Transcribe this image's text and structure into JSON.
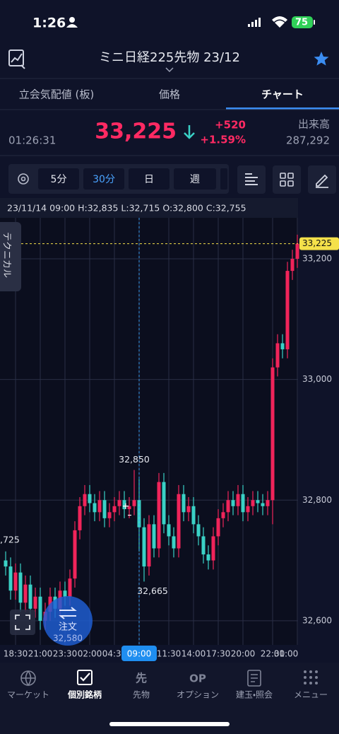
{
  "status_bar": {
    "time": "1:26",
    "battery": "75"
  },
  "header": {
    "title": "ミニ日経225先物 23/12"
  },
  "tabs": [
    "立会気配値 (板)",
    "価格",
    "チャート"
  ],
  "quote": {
    "time": "01:26:31",
    "price": "33,225",
    "change": "+520",
    "change_pct": "+1.59%",
    "volume_label": "出来高",
    "volume": "287,292"
  },
  "toolbar": {
    "intervals": [
      "5分",
      "30分",
      "日",
      "週"
    ]
  },
  "side_tab": "テクニカル",
  "chart_data": {
    "type": "candlestick",
    "info": "23/11/14 09:00 H:32,835 L:32,715 O:32,800 C:32,755",
    "categories": [
      null,
      null,
      "18:30",
      null,
      null,
      null,
      null,
      "21:00",
      null,
      null,
      null,
      null,
      "23:30",
      null,
      null,
      null,
      null,
      "02:00",
      null,
      null,
      null,
      null,
      "04:30",
      null,
      null,
      null,
      null,
      "09:00",
      null,
      null,
      null,
      null,
      null,
      "11:30",
      null,
      null,
      null,
      null,
      "14:00",
      null,
      null,
      null,
      null,
      "17:30",
      null,
      null,
      null,
      null,
      "20:00",
      null,
      null,
      null,
      null,
      null,
      "22:30",
      null,
      null,
      null,
      null,
      "01:00"
    ],
    "open": [
      32700,
      32690,
      32650,
      32680,
      32630,
      32660,
      32620,
      32640,
      32600,
      32615,
      32640,
      32620,
      32650,
      32640,
      32670,
      32750,
      32790,
      32810,
      32795,
      32780,
      32800,
      32770,
      32780,
      32790,
      32800,
      32785,
      32790,
      32800,
      32755,
      32690,
      32760,
      32720,
      32830,
      32760,
      32740,
      32720,
      32810,
      32780,
      32790,
      32760,
      32740,
      32710,
      32700,
      32740,
      32770,
      32780,
      32800,
      32790,
      32810,
      32780,
      32790,
      32800,
      32795,
      32790,
      32800,
      33020,
      33060,
      33050,
      33180,
      33200
    ],
    "high": [
      32715,
      32705,
      32695,
      32695,
      32675,
      32675,
      32655,
      32655,
      32630,
      32655,
      32655,
      32665,
      32665,
      32685,
      32765,
      32805,
      32825,
      32825,
      32810,
      32815,
      32815,
      32795,
      32805,
      32815,
      32815,
      32805,
      32850,
      32835,
      32770,
      32775,
      32775,
      32845,
      32845,
      32775,
      32755,
      32825,
      32825,
      32805,
      32805,
      32775,
      32755,
      32725,
      32755,
      32785,
      32795,
      32815,
      32815,
      32825,
      32825,
      32805,
      32815,
      32815,
      32810,
      32815,
      33035,
      33075,
      33075,
      33195,
      33215,
      33240
    ],
    "low": [
      32675,
      32635,
      32635,
      32615,
      32615,
      32605,
      32605,
      32585,
      32585,
      32600,
      32605,
      32605,
      32625,
      32625,
      32655,
      32735,
      32775,
      32780,
      32765,
      32765,
      32755,
      32755,
      32765,
      32775,
      32770,
      32770,
      32775,
      32715,
      32665,
      32675,
      32705,
      32705,
      32745,
      32725,
      32705,
      32705,
      32765,
      32765,
      32745,
      32725,
      32695,
      32685,
      32685,
      32725,
      32755,
      32765,
      32775,
      32775,
      32765,
      32765,
      32775,
      32780,
      32775,
      32775,
      32760,
      33005,
      33035,
      33035,
      33165,
      33185
    ],
    "close": [
      32690,
      32650,
      32680,
      32630,
      32660,
      32620,
      32640,
      32600,
      32615,
      32640,
      32620,
      32650,
      32640,
      32670,
      32750,
      32790,
      32810,
      32795,
      32780,
      32800,
      32770,
      32780,
      32790,
      32800,
      32785,
      32790,
      32800,
      32755,
      32690,
      32760,
      32720,
      32830,
      32760,
      32740,
      32720,
      32810,
      32780,
      32790,
      32760,
      32740,
      32710,
      32700,
      32740,
      32770,
      32780,
      32800,
      32790,
      32810,
      32780,
      32790,
      32800,
      32795,
      32790,
      32800,
      33020,
      33060,
      33050,
      33180,
      33200,
      33225
    ],
    "up_color": "#f0245a",
    "down_color": "#3ad1c6",
    "ylim": [
      32560,
      33268
    ],
    "yticks": [
      {
        "value": 32600,
        "label": "32,600"
      },
      {
        "value": 32800,
        "label": "32,800"
      },
      {
        "value": 33000,
        "label": "33,000"
      },
      {
        "value": 33200,
        "label": "33,200"
      }
    ],
    "grid": true,
    "current_price": {
      "value": 33225,
      "label": "33,225"
    },
    "annotations": [
      {
        "text": "32,850"
      },
      {
        "text": "32,665"
      },
      {
        "text": ",725"
      }
    ]
  },
  "order_button": {
    "label": "注文",
    "price": "32,580"
  },
  "nav": [
    "マーケット",
    "個別銘柄",
    "先物",
    "オプション",
    "建玉・照会",
    "メニュー"
  ]
}
